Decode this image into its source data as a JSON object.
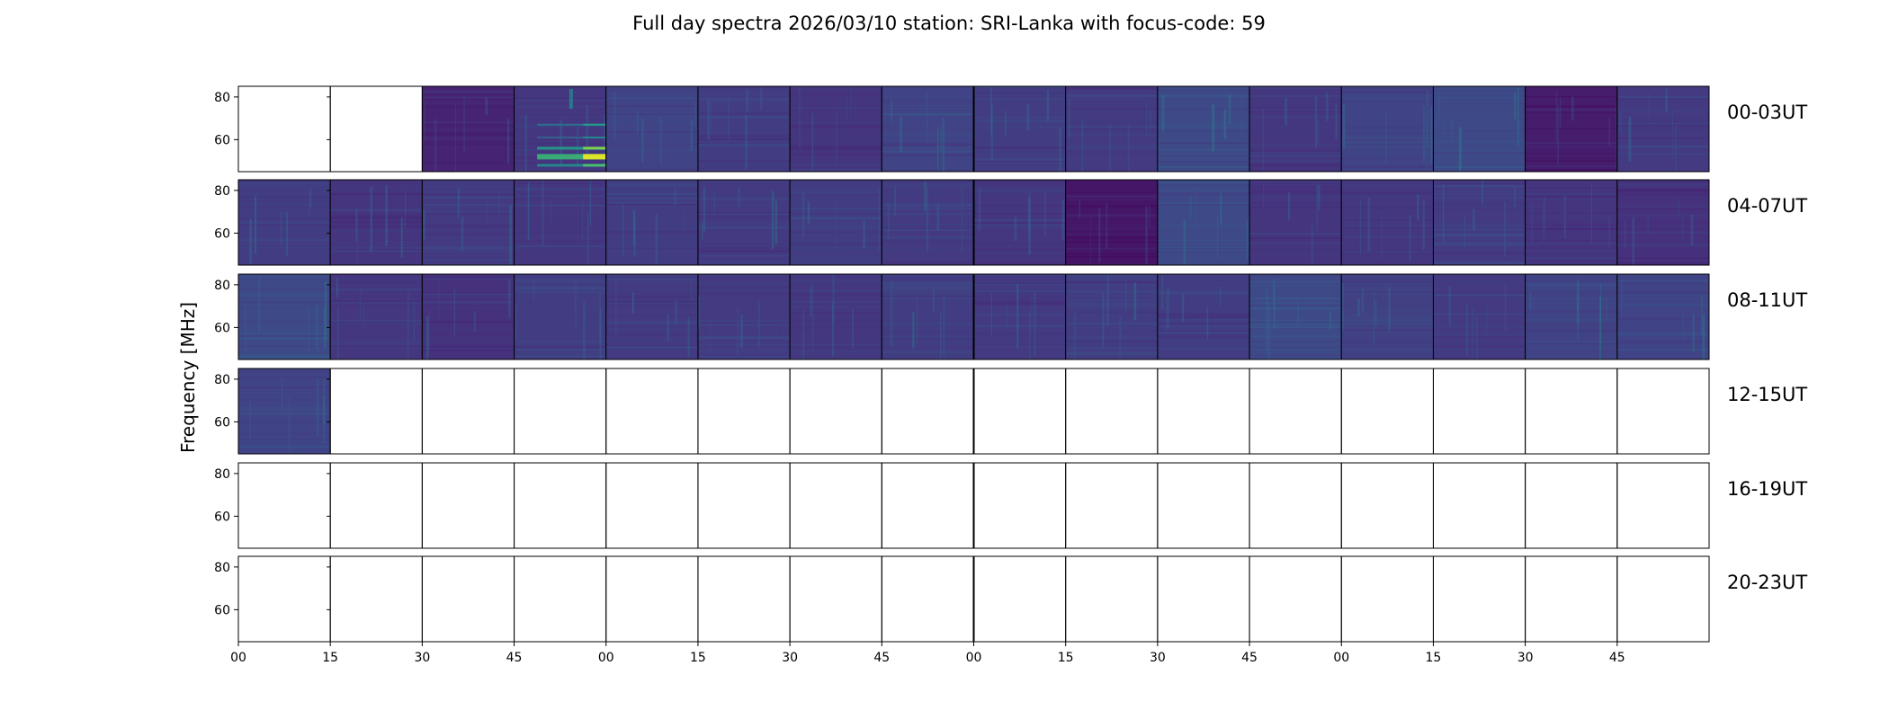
{
  "chart_data": {
    "type": "heatmap",
    "title": "Full day spectra 2026/03/10 station: SRI-Lanka with focus-code: 59",
    "ylabel": "Frequency [MHz]",
    "xlabel": "",
    "ylim": [
      45,
      85
    ],
    "yticks": [
      60,
      80
    ],
    "ytick_labels": [
      "60",
      "80"
    ],
    "xtick_labels": [
      "00",
      "15",
      "30",
      "45",
      "00",
      "15",
      "30",
      "45",
      "00",
      "15",
      "30",
      "45",
      "00",
      "15",
      "30",
      "45"
    ],
    "colormap": [
      "#440154",
      "#472d7b",
      "#3b528b",
      "#2c728e",
      "#21918c",
      "#28ae80",
      "#5ec962",
      "#addc30",
      "#fde725"
    ],
    "panels_per_row": 16,
    "panel_minutes": 15,
    "rows": [
      {
        "label": "00-03UT",
        "panels": [
          {
            "has_data": false,
            "intensity": 0
          },
          {
            "has_data": false,
            "intensity": 0
          },
          {
            "has_data": true,
            "intensity": 0.1
          },
          {
            "has_data": true,
            "intensity": 0.16,
            "burst": true
          },
          {
            "has_data": true,
            "intensity": 0.2
          },
          {
            "has_data": true,
            "intensity": 0.18
          },
          {
            "has_data": true,
            "intensity": 0.15
          },
          {
            "has_data": true,
            "intensity": 0.2
          },
          {
            "has_data": true,
            "intensity": 0.18
          },
          {
            "has_data": true,
            "intensity": 0.17
          },
          {
            "has_data": true,
            "intensity": 0.22
          },
          {
            "has_data": true,
            "intensity": 0.16
          },
          {
            "has_data": true,
            "intensity": 0.2
          },
          {
            "has_data": true,
            "intensity": 0.22
          },
          {
            "has_data": true,
            "intensity": 0.08
          },
          {
            "has_data": true,
            "intensity": 0.17
          }
        ]
      },
      {
        "label": "04-07UT",
        "panels": [
          {
            "has_data": true,
            "intensity": 0.18
          },
          {
            "has_data": true,
            "intensity": 0.15
          },
          {
            "has_data": true,
            "intensity": 0.17
          },
          {
            "has_data": true,
            "intensity": 0.16
          },
          {
            "has_data": true,
            "intensity": 0.18
          },
          {
            "has_data": true,
            "intensity": 0.17
          },
          {
            "has_data": true,
            "intensity": 0.18
          },
          {
            "has_data": true,
            "intensity": 0.17
          },
          {
            "has_data": true,
            "intensity": 0.16
          },
          {
            "has_data": true,
            "intensity": 0.06
          },
          {
            "has_data": true,
            "intensity": 0.22
          },
          {
            "has_data": true,
            "intensity": 0.15
          },
          {
            "has_data": true,
            "intensity": 0.16
          },
          {
            "has_data": true,
            "intensity": 0.17
          },
          {
            "has_data": true,
            "intensity": 0.15
          },
          {
            "has_data": true,
            "intensity": 0.14
          }
        ]
      },
      {
        "label": "08-11UT",
        "panels": [
          {
            "has_data": true,
            "intensity": 0.22
          },
          {
            "has_data": true,
            "intensity": 0.16
          },
          {
            "has_data": true,
            "intensity": 0.14
          },
          {
            "has_data": true,
            "intensity": 0.18
          },
          {
            "has_data": true,
            "intensity": 0.17
          },
          {
            "has_data": true,
            "intensity": 0.17
          },
          {
            "has_data": true,
            "intensity": 0.16
          },
          {
            "has_data": true,
            "intensity": 0.18
          },
          {
            "has_data": true,
            "intensity": 0.17
          },
          {
            "has_data": true,
            "intensity": 0.18
          },
          {
            "has_data": true,
            "intensity": 0.18
          },
          {
            "has_data": true,
            "intensity": 0.22
          },
          {
            "has_data": true,
            "intensity": 0.19
          },
          {
            "has_data": true,
            "intensity": 0.17
          },
          {
            "has_data": true,
            "intensity": 0.2
          },
          {
            "has_data": true,
            "intensity": 0.2
          }
        ]
      },
      {
        "label": "12-15UT",
        "panels": [
          {
            "has_data": true,
            "intensity": 0.2
          },
          {
            "has_data": false,
            "intensity": 0
          },
          {
            "has_data": false,
            "intensity": 0
          },
          {
            "has_data": false,
            "intensity": 0
          },
          {
            "has_data": false,
            "intensity": 0
          },
          {
            "has_data": false,
            "intensity": 0
          },
          {
            "has_data": false,
            "intensity": 0
          },
          {
            "has_data": false,
            "intensity": 0
          },
          {
            "has_data": false,
            "intensity": 0
          },
          {
            "has_data": false,
            "intensity": 0
          },
          {
            "has_data": false,
            "intensity": 0
          },
          {
            "has_data": false,
            "intensity": 0
          },
          {
            "has_data": false,
            "intensity": 0
          },
          {
            "has_data": false,
            "intensity": 0
          },
          {
            "has_data": false,
            "intensity": 0
          },
          {
            "has_data": false,
            "intensity": 0
          }
        ]
      },
      {
        "label": "16-19UT",
        "panels": [
          {
            "has_data": false,
            "intensity": 0
          },
          {
            "has_data": false,
            "intensity": 0
          },
          {
            "has_data": false,
            "intensity": 0
          },
          {
            "has_data": false,
            "intensity": 0
          },
          {
            "has_data": false,
            "intensity": 0
          },
          {
            "has_data": false,
            "intensity": 0
          },
          {
            "has_data": false,
            "intensity": 0
          },
          {
            "has_data": false,
            "intensity": 0
          },
          {
            "has_data": false,
            "intensity": 0
          },
          {
            "has_data": false,
            "intensity": 0
          },
          {
            "has_data": false,
            "intensity": 0
          },
          {
            "has_data": false,
            "intensity": 0
          },
          {
            "has_data": false,
            "intensity": 0
          },
          {
            "has_data": false,
            "intensity": 0
          },
          {
            "has_data": false,
            "intensity": 0
          },
          {
            "has_data": false,
            "intensity": 0
          }
        ]
      },
      {
        "label": "20-23UT",
        "panels": [
          {
            "has_data": false,
            "intensity": 0
          },
          {
            "has_data": false,
            "intensity": 0
          },
          {
            "has_data": false,
            "intensity": 0
          },
          {
            "has_data": false,
            "intensity": 0
          },
          {
            "has_data": false,
            "intensity": 0
          },
          {
            "has_data": false,
            "intensity": 0
          },
          {
            "has_data": false,
            "intensity": 0
          },
          {
            "has_data": false,
            "intensity": 0
          },
          {
            "has_data": false,
            "intensity": 0
          },
          {
            "has_data": false,
            "intensity": 0
          },
          {
            "has_data": false,
            "intensity": 0
          },
          {
            "has_data": false,
            "intensity": 0
          },
          {
            "has_data": false,
            "intensity": 0
          },
          {
            "has_data": false,
            "intensity": 0
          },
          {
            "has_data": false,
            "intensity": 0
          },
          {
            "has_data": false,
            "intensity": 0
          }
        ]
      }
    ]
  }
}
